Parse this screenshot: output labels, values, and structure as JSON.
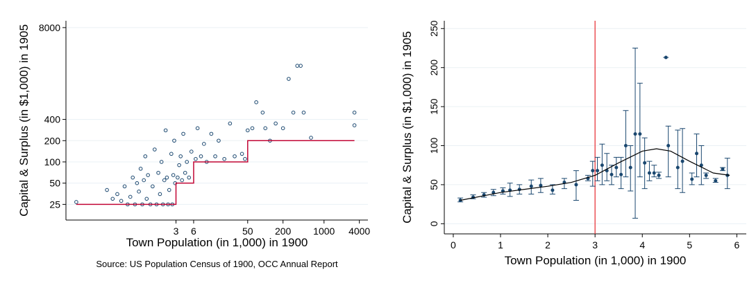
{
  "chart_data": [
    {
      "type": "scatter",
      "x_label": "Town Population (in 1,000) in 1900",
      "y_label": "Capital & Surplus (in $1,000) in 1905",
      "note": "Source: US Population Census of 1900, OCC Annual Report",
      "xlog": true,
      "ylog": true,
      "grid": true,
      "xlim": [
        0.04,
        5600
      ],
      "ylim": [
        15,
        10000
      ],
      "xticks": [
        3,
        6,
        50,
        200,
        1000,
        4000
      ],
      "yticks": [
        25,
        50,
        100,
        200,
        400,
        8000
      ],
      "point_color": "#1a476f",
      "step_color": "#c10534",
      "points": {
        "x": [
          0.06,
          0.2,
          0.25,
          0.3,
          0.35,
          0.4,
          0.45,
          0.5,
          0.55,
          0.6,
          0.65,
          0.7,
          0.75,
          0.8,
          0.85,
          0.9,
          0.95,
          1.0,
          1.1,
          1.2,
          1.3,
          1.4,
          1.5,
          1.6,
          1.7,
          1.8,
          1.9,
          2.0,
          2.1,
          2.2,
          2.3,
          2.5,
          2.6,
          2.7,
          2.8,
          2.9,
          3.2,
          3.4,
          3.6,
          3.8,
          4.0,
          4.3,
          4.6,
          5.0,
          5.5,
          6.5,
          7,
          8,
          9,
          10,
          12,
          14,
          16,
          20,
          25,
          30,
          40,
          45,
          50,
          60,
          70,
          90,
          100,
          120,
          150,
          200,
          250,
          300,
          350,
          400,
          450,
          600,
          3300,
          3300
        ],
        "y": [
          27,
          40,
          30,
          35,
          28,
          45,
          25,
          32,
          60,
          25,
          50,
          38,
          80,
          25,
          55,
          120,
          30,
          65,
          25,
          45,
          150,
          25,
          70,
          35,
          100,
          25,
          55,
          280,
          60,
          25,
          40,
          130,
          25,
          65,
          200,
          50,
          60,
          90,
          120,
          55,
          250,
          70,
          100,
          60,
          140,
          110,
          300,
          120,
          180,
          100,
          250,
          120,
          200,
          110,
          350,
          120,
          130,
          110,
          280,
          300,
          700,
          500,
          300,
          200,
          350,
          300,
          1500,
          500,
          2300,
          2300,
          500,
          220,
          500,
          330
        ]
      },
      "step": {
        "x": [
          0.06,
          3,
          3,
          6,
          6,
          50,
          50,
          3300
        ],
        "y": [
          25,
          25,
          50,
          50,
          100,
          100,
          200,
          200
        ]
      }
    },
    {
      "type": "errorbar",
      "x_label": "Town Population (in 1,000) in 1900",
      "y_label": "Capital & Surplus (in $1,000) in 1905",
      "grid": true,
      "xlim": [
        -0.19,
        6.2
      ],
      "ylim": [
        -13,
        260
      ],
      "xticks": [
        0,
        1,
        2,
        3,
        4,
        5,
        6
      ],
      "yticks": [
        0,
        50,
        100,
        150,
        200,
        250
      ],
      "point_color": "#1a476f",
      "fit_color": "#000000",
      "vline_color": "#e8363a",
      "vline": 3,
      "points": {
        "x": [
          0.15,
          0.42,
          0.65,
          0.85,
          1.05,
          1.2,
          1.4,
          1.65,
          1.85,
          2.1,
          2.35,
          2.6,
          2.85,
          2.95,
          3.05,
          3.15,
          3.25,
          3.35,
          3.45,
          3.55,
          3.65,
          3.75,
          3.85,
          3.95,
          4.05,
          4.15,
          4.25,
          4.35,
          4.5,
          4.55,
          4.75,
          4.85,
          5.05,
          5.15,
          5.25,
          5.35,
          5.55,
          5.7,
          5.8
        ],
        "y": [
          30,
          34,
          37,
          40,
          42,
          43,
          44,
          48,
          49,
          43,
          53,
          50,
          58,
          68,
          68,
          75,
          68,
          63,
          72,
          63,
          100,
          72,
          115,
          115,
          78,
          65,
          65,
          62,
          213,
          100,
          72,
          80,
          57,
          90,
          75,
          62,
          55,
          70,
          62
        ],
        "lower": [
          28,
          32,
          34,
          36,
          38,
          35,
          38,
          38,
          40,
          38,
          45,
          30,
          55,
          48,
          55,
          50,
          55,
          50,
          60,
          45,
          60,
          42,
          7,
          60,
          45,
          55,
          60,
          58,
          213,
          60,
          45,
          40,
          50,
          60,
          50,
          58,
          53,
          68,
          45
        ],
        "upper": [
          33,
          37,
          40,
          44,
          46,
          52,
          50,
          56,
          58,
          50,
          58,
          68,
          62,
          80,
          85,
          102,
          90,
          75,
          85,
          85,
          145,
          100,
          225,
          180,
          110,
          80,
          75,
          66,
          213,
          125,
          120,
          122,
          65,
          115,
          100,
          65,
          58,
          72,
          84
        ]
      },
      "fit": {
        "x": [
          0.15,
          1,
          2,
          2.5,
          3,
          3.5,
          4,
          4.3,
          4.6,
          5,
          5.5,
          5.85
        ],
        "y": [
          30,
          40,
          48,
          53,
          62,
          78,
          93,
          96,
          93,
          80,
          65,
          62
        ]
      }
    }
  ]
}
